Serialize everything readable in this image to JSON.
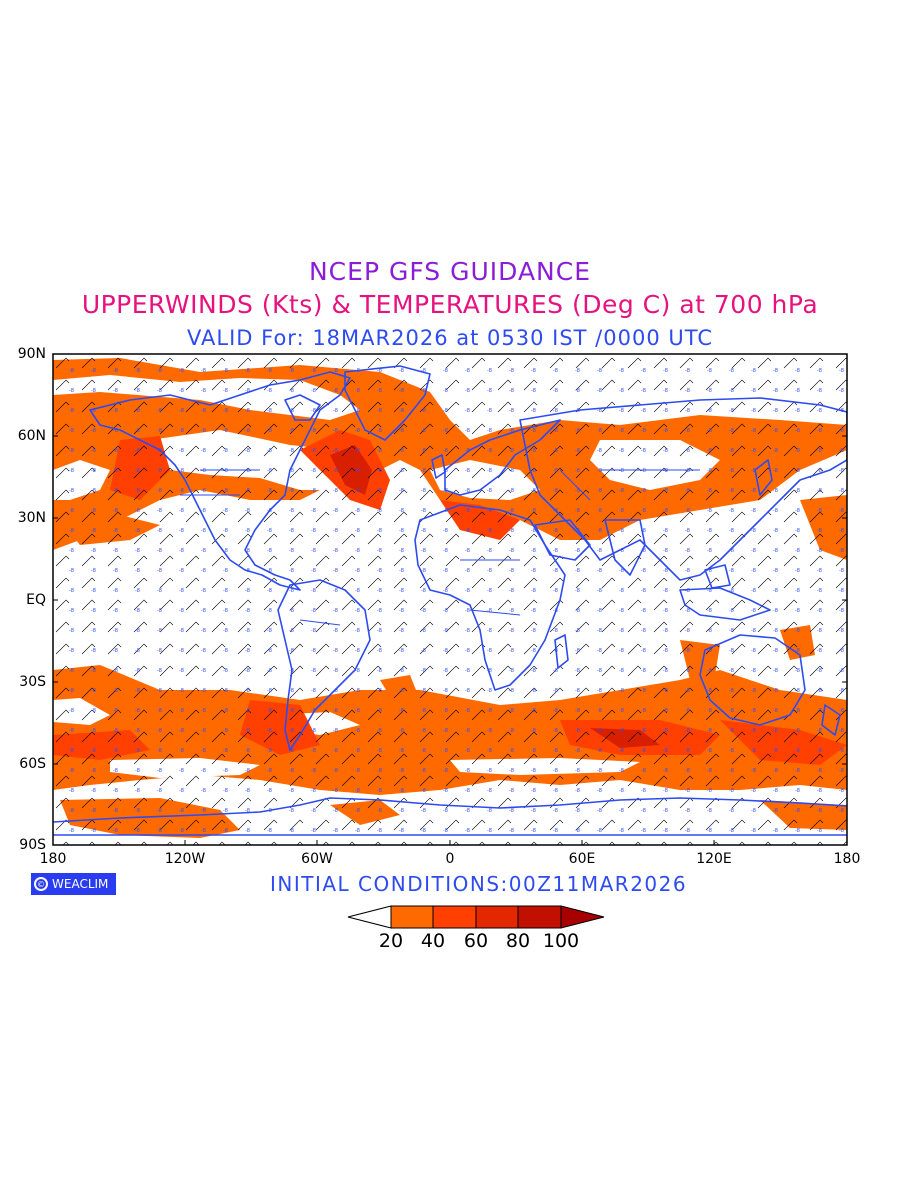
{
  "titles": {
    "line1": "NCEP GFS GUIDANCE",
    "line2": "UPPERWINDS (Kts) & TEMPERATURES (Deg C) at 700 hPa",
    "line3": "VALID For: 18MAR2026 at 0530 IST /0000 UTC"
  },
  "axes": {
    "lat_labels": [
      "90N",
      "60N",
      "30N",
      "EQ",
      "30S",
      "60S",
      "90S"
    ],
    "lon_labels": [
      "180",
      "120W",
      "60W",
      "0",
      "60E",
      "120E",
      "180"
    ]
  },
  "footer": {
    "logo_text": "WEACLIM",
    "initial_conditions": "INITIAL CONDITIONS:00Z11MAR2026"
  },
  "colorbar": {
    "labels": [
      "20",
      "40",
      "60",
      "80",
      "100"
    ],
    "colors": [
      "#ffffff",
      "#ff6a00",
      "#ff4000",
      "#e32800",
      "#c21000",
      "#a80000"
    ]
  },
  "colors": {
    "wind_fill_low": "#ff6a00",
    "wind_fill_mid": "#ff4000",
    "wind_fill_high": "#d82000",
    "coastline": "#2d4bf0",
    "temperature_text": "#2d4bf0",
    "barbs": "#000000"
  }
}
